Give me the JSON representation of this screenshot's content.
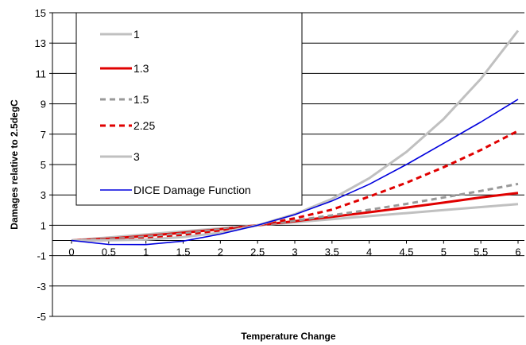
{
  "chart_data": {
    "type": "line",
    "xlabel": "Temperature Change",
    "ylabel": "Damages relative to 2.5degC",
    "xlim": [
      0,
      6
    ],
    "ylim": [
      -5,
      15
    ],
    "x_ticks": [
      "0",
      "0.5",
      "1",
      "1.5",
      "2",
      "2.5",
      "3",
      "3.5",
      "4",
      "4.5",
      "5",
      "5.5",
      "6"
    ],
    "y_ticks": [
      "-5",
      "-3",
      "-1",
      "1",
      "3",
      "5",
      "7",
      "9",
      "11",
      "13",
      "15"
    ],
    "grid": "horizontal",
    "legend_position": "top-left",
    "x": [
      0,
      0.5,
      1,
      1.5,
      2,
      2.5,
      3,
      3.5,
      4,
      4.5,
      5,
      5.5,
      6
    ],
    "series": [
      {
        "name": "1",
        "color": "#c0c0c0",
        "dash": "solid",
        "width": 3,
        "values": [
          0,
          0.2,
          0.4,
          0.6,
          0.8,
          1,
          1.2,
          1.4,
          1.6,
          1.8,
          2,
          2.2,
          2.4
        ]
      },
      {
        "name": "1.3",
        "color": "#e00000",
        "dash": "solid",
        "width": 3,
        "values": [
          0,
          0.12,
          0.3,
          0.51,
          0.74,
          1,
          1.27,
          1.56,
          1.86,
          2.17,
          2.49,
          2.83,
          3.13
        ]
      },
      {
        "name": "1.5",
        "color": "#999999",
        "dash": "dashed",
        "width": 3,
        "values": [
          0,
          0.09,
          0.25,
          0.46,
          0.72,
          1,
          1.31,
          1.66,
          2.02,
          2.41,
          2.83,
          3.26,
          3.72
        ]
      },
      {
        "name": "2.25",
        "color": "#e00000",
        "dash": "dashed",
        "width": 3,
        "values": [
          0,
          0.02,
          0.13,
          0.33,
          0.63,
          1,
          1.46,
          2.03,
          2.89,
          3.8,
          4.82,
          5.96,
          7.22
        ]
      },
      {
        "name": "3",
        "color": "#c0c0c0",
        "dash": "solid",
        "width": 3,
        "values": [
          0,
          0.01,
          0.06,
          0.22,
          0.51,
          1,
          1.73,
          2.74,
          4.1,
          5.83,
          8.0,
          10.65,
          13.82
        ]
      },
      {
        "name": "DICE Damage Function",
        "color": "#0000dd",
        "dash": "solid",
        "width": 1.6,
        "values": [
          0,
          -0.26,
          -0.27,
          -0.04,
          0.42,
          1,
          1.7,
          2.6,
          3.7,
          5.0,
          6.4,
          7.8,
          9.3
        ]
      }
    ]
  }
}
